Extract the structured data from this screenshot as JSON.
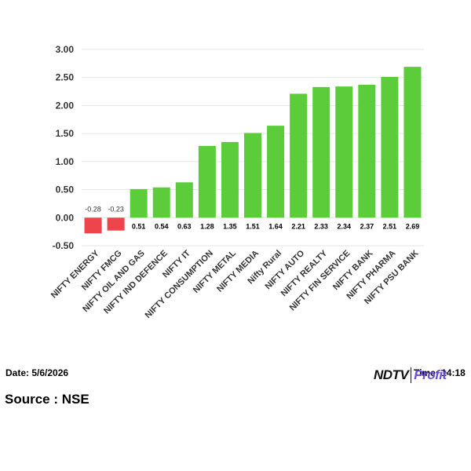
{
  "chart_data": {
    "type": "bar",
    "categories": [
      "NIFTY ENERGY",
      "NIFTY FMCG",
      "NIFTY OIL AND GAS",
      "NIFTY IND DEFENCE",
      "NIFTY IT",
      "NIFTY CONSUMPTION",
      "NIFTY METAL",
      "NIFTY MEDIA",
      "Nifty Rural",
      "NIFTY AUTO",
      "NIFTY REALTY",
      "NIFTY FIN SERVICE",
      "NIFTY BANK",
      "NIFTY PHARMA",
      "NIFTY PSU BANK"
    ],
    "values": [
      -0.28,
      -0.23,
      0.51,
      0.54,
      0.63,
      1.28,
      1.35,
      1.51,
      1.64,
      2.21,
      2.33,
      2.34,
      2.37,
      2.51,
      2.69
    ],
    "value_labels": [
      "-0.28",
      "-0.23",
      "0.51",
      "0.54",
      "0.63",
      "1.28",
      "1.35",
      "1.51",
      "1.64",
      "2.21",
      "2.33",
      "2.34",
      "2.37",
      "2.51",
      "2.69"
    ],
    "yticks": [
      "3.00",
      "2.50",
      "2.00",
      "1.50",
      "1.00",
      "0.50",
      "0.00",
      "-0.50"
    ],
    "ylim": [
      -0.5,
      3.0
    ],
    "colors": {
      "positive": "#5ccc3b",
      "negative": "#f0444d"
    },
    "grid": true
  },
  "footer": {
    "date": "Date: 5/6/2026",
    "source": "Source : NSE",
    "time": "Time: 14:18"
  },
  "logo": {
    "part1": "NDTV",
    "part2": "Profit"
  }
}
